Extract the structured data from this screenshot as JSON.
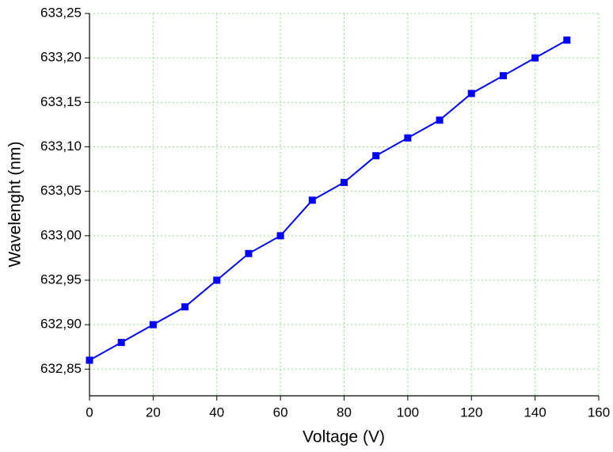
{
  "chart_data": {
    "type": "line",
    "x_label": "Voltage (V)",
    "y_label": "Wavelenght (nm)",
    "x": [
      0,
      10,
      20,
      30,
      40,
      50,
      60,
      70,
      80,
      90,
      100,
      110,
      120,
      130,
      140,
      150
    ],
    "values": [
      632.86,
      632.88,
      632.9,
      632.92,
      632.95,
      632.98,
      633.0,
      633.04,
      633.06,
      633.09,
      633.11,
      633.13,
      633.16,
      633.18,
      633.2,
      633.22
    ],
    "color": "#0000ff",
    "xlim": [
      0,
      160
    ],
    "xticks": [
      0,
      20,
      40,
      60,
      80,
      100,
      120,
      140,
      160
    ],
    "ylim": [
      632.82,
      633.25
    ],
    "yticks": [
      {
        "value": 632.85,
        "label": "632,85"
      },
      {
        "value": 632.9,
        "label": "632,90"
      },
      {
        "value": 632.95,
        "label": "632,95"
      },
      {
        "value": 633.0,
        "label": "633,00"
      },
      {
        "value": 633.05,
        "label": "633,05"
      },
      {
        "value": 633.1,
        "label": "633,10"
      },
      {
        "value": 633.15,
        "label": "633,15"
      },
      {
        "value": 633.2,
        "label": "633,20"
      },
      {
        "value": 633.25,
        "label": "633,25"
      }
    ],
    "grid": true,
    "grid_color": "#90e090"
  }
}
